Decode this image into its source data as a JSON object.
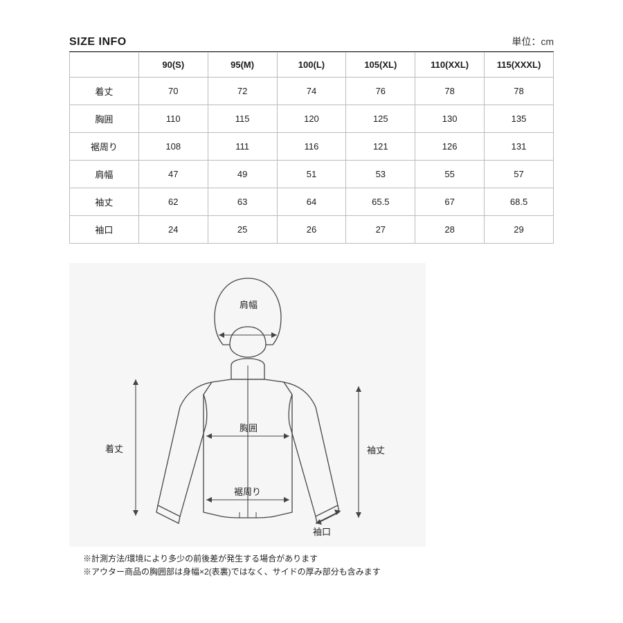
{
  "header": {
    "title": "SIZE INFO",
    "unit": "単位：cm"
  },
  "table": {
    "columns": [
      "",
      "90(S)",
      "95(M)",
      "100(L)",
      "105(XL)",
      "110(XXL)",
      "115(XXXL)"
    ],
    "rows": [
      [
        "着丈",
        "70",
        "72",
        "74",
        "76",
        "78",
        "78"
      ],
      [
        "胸囲",
        "110",
        "115",
        "120",
        "125",
        "130",
        "135"
      ],
      [
        "裾周り",
        "108",
        "111",
        "116",
        "121",
        "126",
        "131"
      ],
      [
        "肩幅",
        "47",
        "49",
        "51",
        "53",
        "55",
        "57"
      ],
      [
        "袖丈",
        "62",
        "63",
        "64",
        "65.5",
        "67",
        "68.5"
      ],
      [
        "袖口",
        "24",
        "25",
        "26",
        "27",
        "28",
        "29"
      ]
    ],
    "border_color": "#bbbbbb",
    "header_border_color": "#222222",
    "fontsize": 13
  },
  "diagram": {
    "background_color": "#f6f6f6",
    "stroke_color": "#444444",
    "stroke_width": 1.3,
    "labels": {
      "shoulder": "肩幅",
      "length": "着丈",
      "chest": "胸囲",
      "hem": "裾周り",
      "sleeve_length": "袖丈",
      "sleeve_opening": "袖口"
    }
  },
  "notes": {
    "line1": "※計測方法/環境により多少の前後差が発生する場合があります",
    "line2": "※アウター商品の胸囲部は身幅×2(表裏)ではなく、サイドの厚み部分も含みます"
  }
}
